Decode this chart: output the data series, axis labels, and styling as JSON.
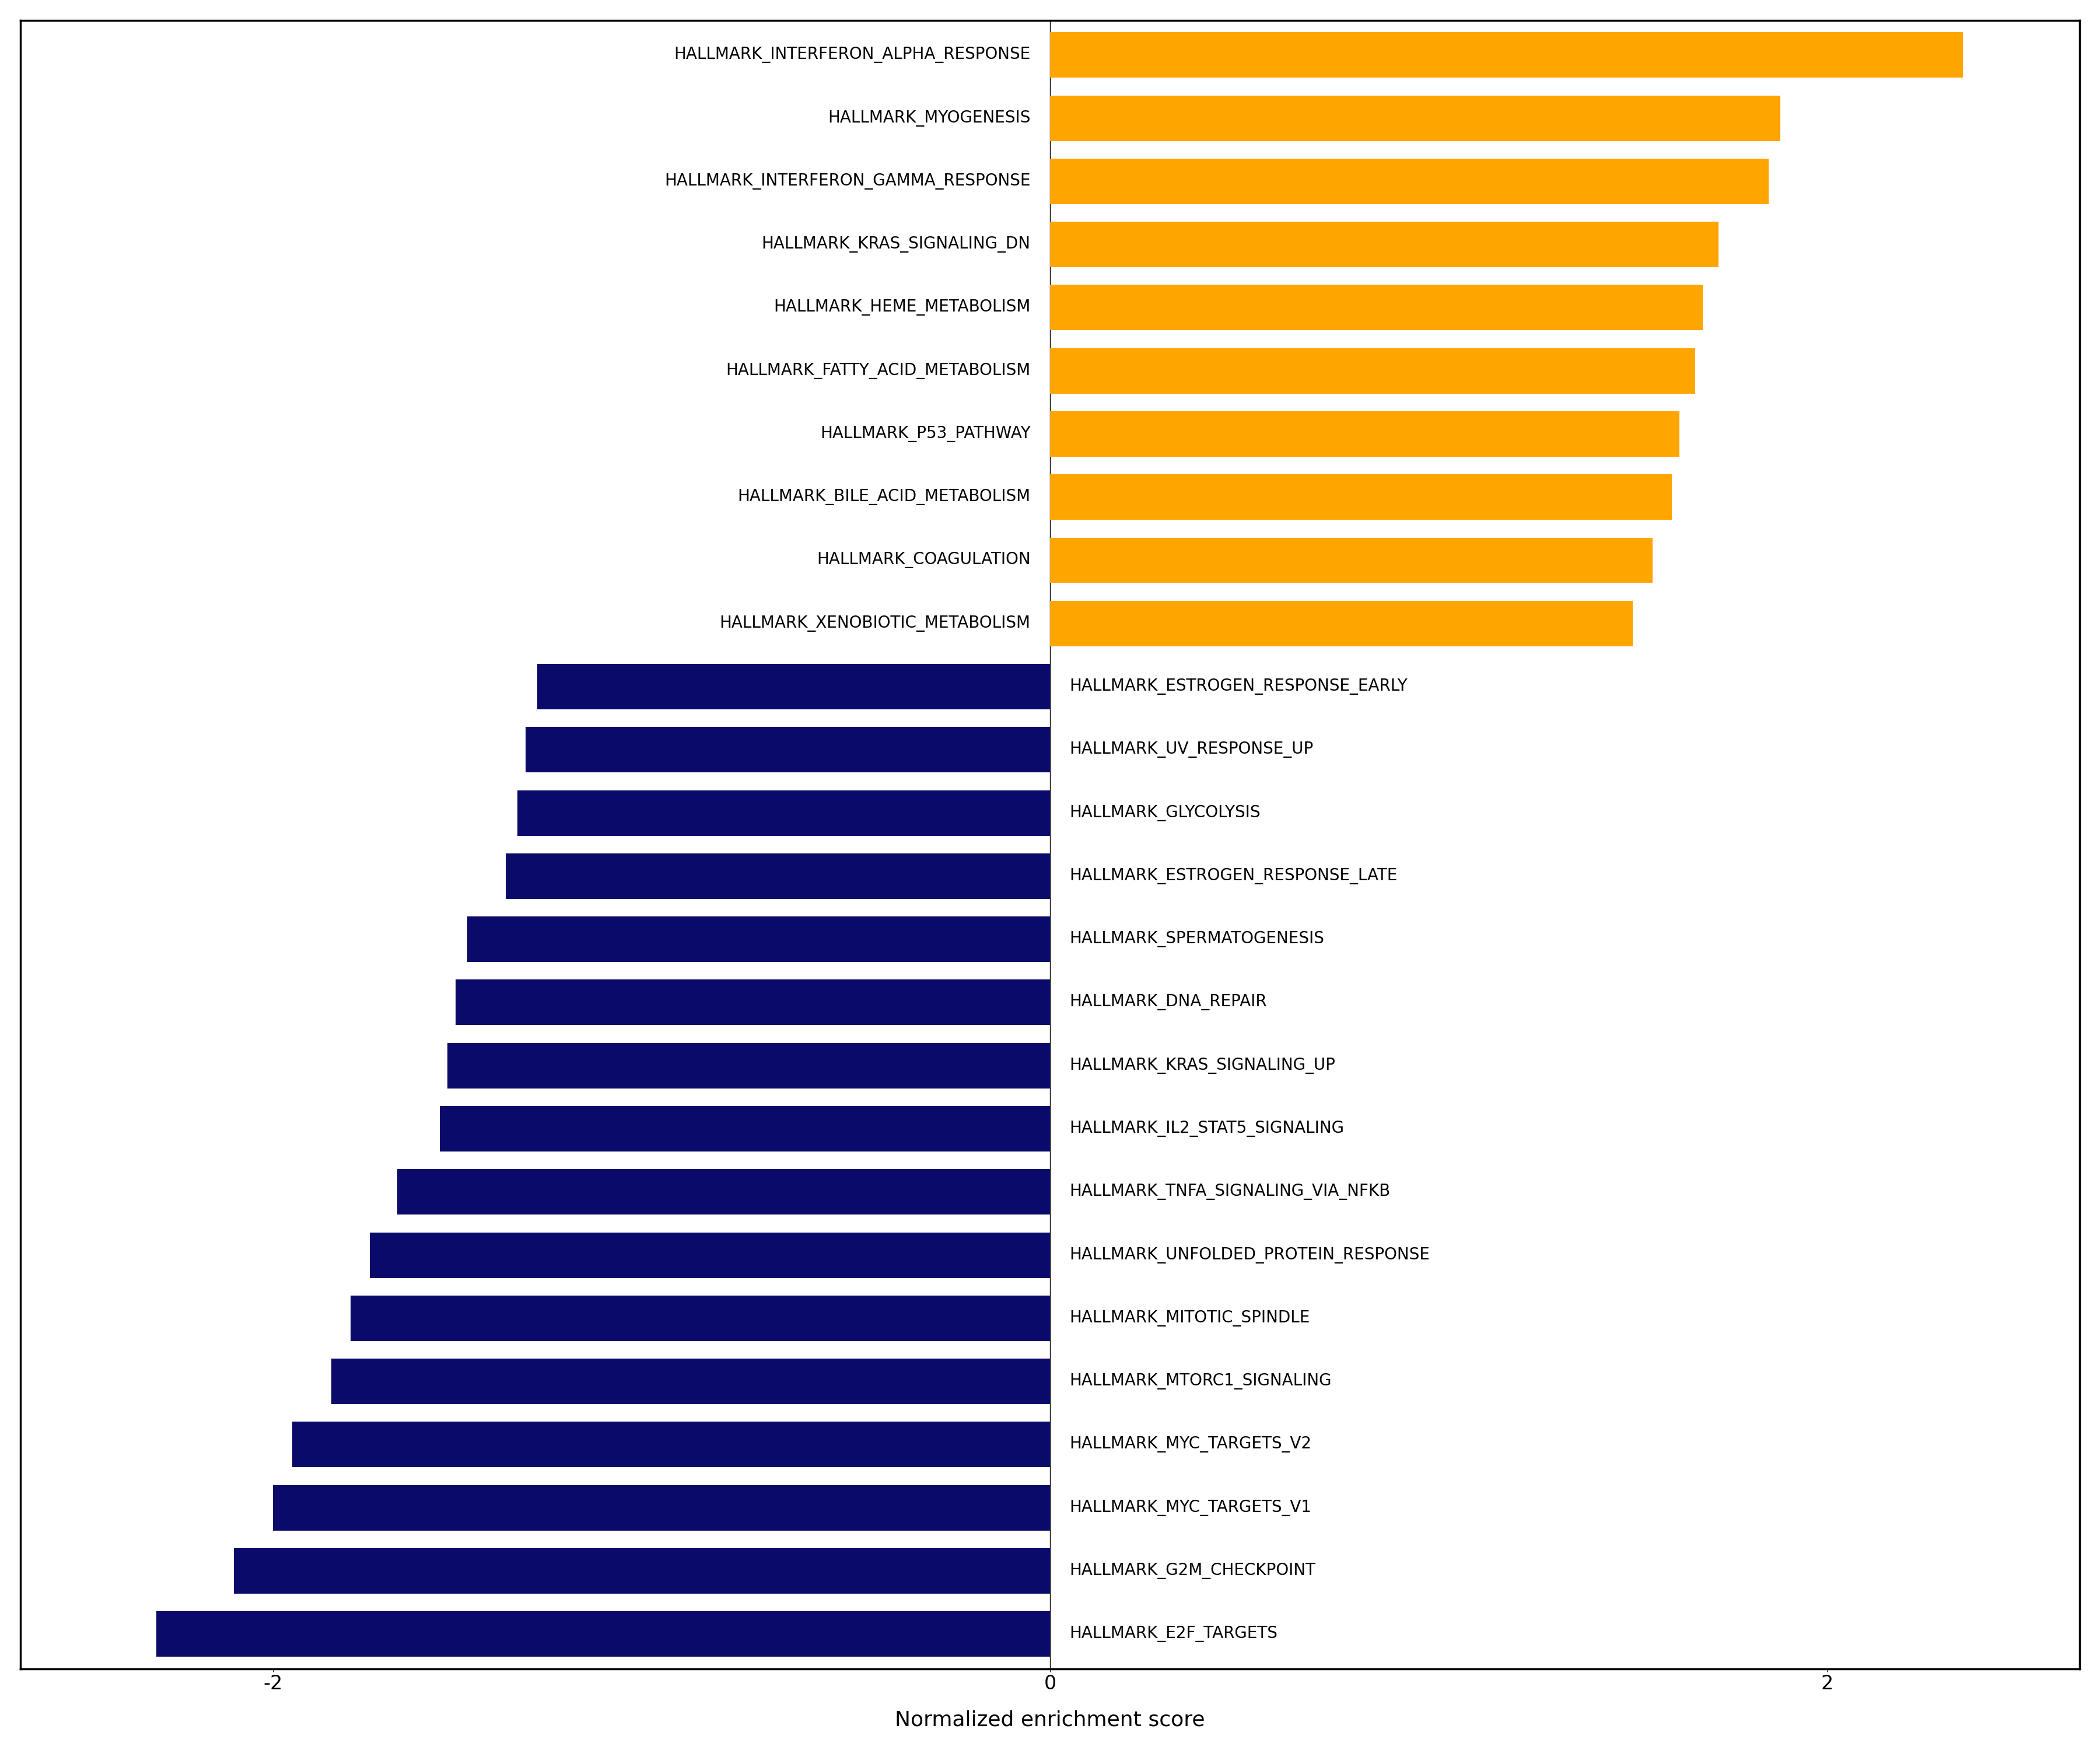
{
  "positive_labels": [
    "HALLMARK_INTERFERON_ALPHA_RESPONSE",
    "HALLMARK_MYOGENESIS",
    "HALLMARK_INTERFERON_GAMMA_RESPONSE",
    "HALLMARK_KRAS_SIGNALING_DN",
    "HALLMARK_HEME_METABOLISM",
    "HALLMARK_FATTY_ACID_METABOLISM",
    "HALLMARK_P53_PATHWAY",
    "HALLMARK_BILE_ACID_METABOLISM",
    "HALLMARK_COAGULATION",
    "HALLMARK_XENOBIOTIC_METABOLISM"
  ],
  "positive_values": [
    2.35,
    1.88,
    1.85,
    1.72,
    1.68,
    1.66,
    1.62,
    1.6,
    1.55,
    1.5
  ],
  "negative_labels": [
    "HALLMARK_ESTROGEN_RESPONSE_EARLY",
    "HALLMARK_UV_RESPONSE_UP",
    "HALLMARK_GLYCOLYSIS",
    "HALLMARK_ESTROGEN_RESPONSE_LATE",
    "HALLMARK_SPERMATOGENESIS",
    "HALLMARK_DNA_REPAIR",
    "HALLMARK_KRAS_SIGNALING_UP",
    "HALLMARK_IL2_STAT5_SIGNALING",
    "HALLMARK_TNFA_SIGNALING_VIA_NFKB",
    "HALLMARK_UNFOLDED_PROTEIN_RESPONSE",
    "HALLMARK_MITOTIC_SPINDLE",
    "HALLMARK_MTORC1_SIGNALING",
    "HALLMARK_MYC_TARGETS_V2",
    "HALLMARK_MYC_TARGETS_V1",
    "HALLMARK_G2M_CHECKPOINT",
    "HALLMARK_E2F_TARGETS"
  ],
  "negative_values": [
    -1.32,
    -1.35,
    -1.37,
    -1.4,
    -1.5,
    -1.53,
    -1.55,
    -1.57,
    -1.68,
    -1.75,
    -1.8,
    -1.85,
    -1.95,
    -2.0,
    -2.1,
    -2.3
  ],
  "positive_color": "#FFA500",
  "negative_color": "#0A0A6B",
  "xlabel": "Normalized enrichment score",
  "xlim": [
    -2.65,
    2.65
  ],
  "xticks": [
    -2,
    0,
    2
  ],
  "background_color": "#ffffff",
  "label_fontsize": 20,
  "tick_fontsize": 24,
  "xlabel_fontsize": 26
}
